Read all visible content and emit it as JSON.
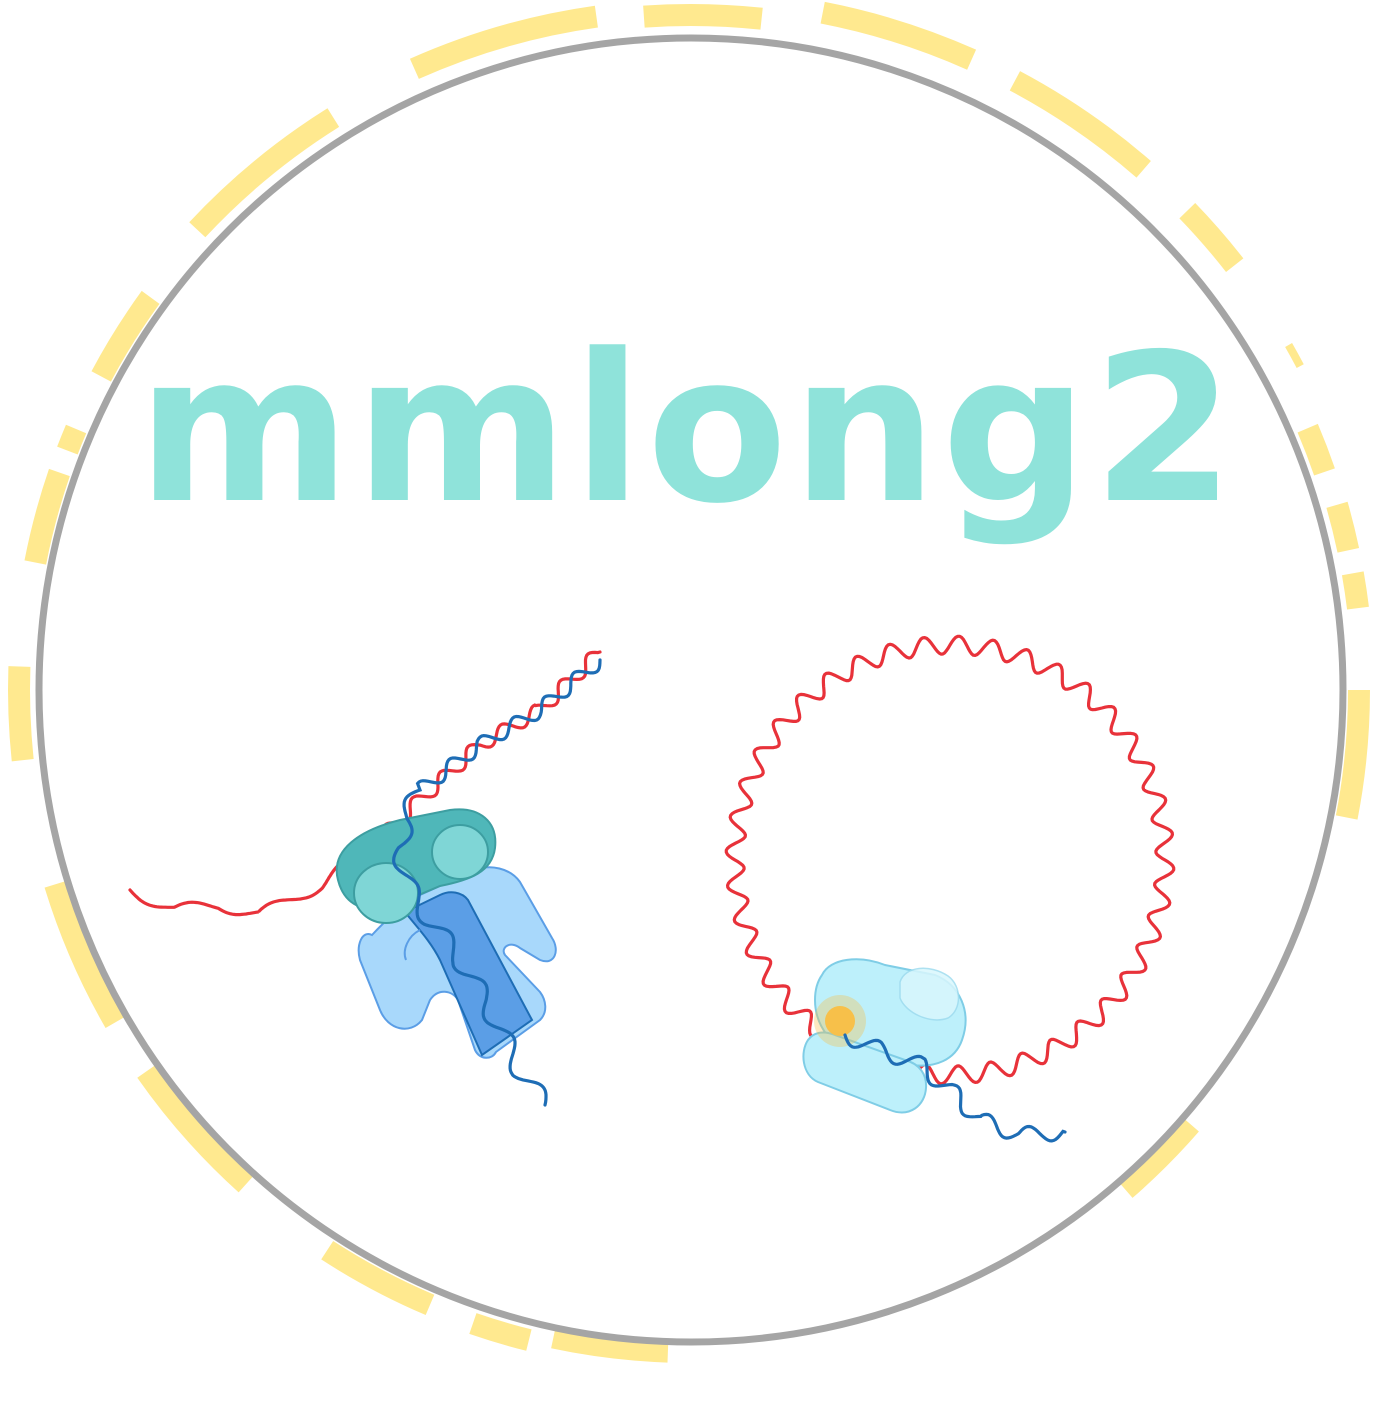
{
  "logo": {
    "title": "mmlong2",
    "colors": {
      "title": "#8fe3da",
      "ring": "#a5a5a5",
      "dashes": "#ffe98f",
      "strand_red": "#e8323a",
      "strand_blue": "#1e6db5",
      "ribosome_teal": "#7fd6d6",
      "ribosome_teal_dark": "#4fb7b9",
      "polymerase_blue": "#a8d8fb",
      "polymerase_channel": "#5b9ee6",
      "enzyme_cyan": "#bdf0fb",
      "active_site": "#f7c04a"
    },
    "icons": [
      "outer-ring",
      "dashed-arc-ring",
      "linear-dna-icon",
      "ribosome-icon",
      "polymerase-icon",
      "circular-dna-icon",
      "enzyme-complex-icon",
      "active-site-icon"
    ]
  }
}
